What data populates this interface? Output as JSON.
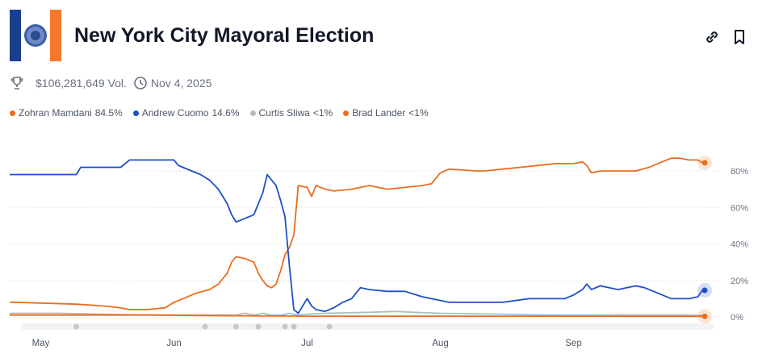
{
  "header": {
    "title": "New York City Mayoral Election",
    "link_icon": "link-icon",
    "bookmark_icon": "bookmark-icon",
    "logo_colors": {
      "left": "#1b3f8f",
      "right": "#f4782a"
    }
  },
  "meta": {
    "volume": "$106,281,649 Vol.",
    "date": "Nov 4, 2025",
    "volume_icon": "trophy-icon",
    "date_icon": "clock-icon"
  },
  "legend": [
    {
      "name": "Zohran Mamdani",
      "value": "84.5%",
      "color": "#ea6d1d"
    },
    {
      "name": "Andrew Cuomo",
      "value": "14.6%",
      "color": "#1e4fc9"
    },
    {
      "name": "Curtis Sliwa",
      "value": "<1%",
      "color": "#b3bac4"
    },
    {
      "name": "Brad Lander",
      "value": "<1%",
      "color": "#ea6d1d"
    }
  ],
  "chart_data": {
    "type": "line",
    "x_axis_labels": [
      "May",
      "Jun",
      "Jul",
      "Aug",
      "Sep"
    ],
    "x_axis_label_days": [
      6,
      36,
      66,
      96,
      126
    ],
    "y_tick_labels": [
      "0%",
      "20%",
      "40%",
      "60%",
      "80%"
    ],
    "y_tick_values": [
      0,
      20,
      40,
      60,
      80
    ],
    "ylim": [
      0,
      90
    ],
    "xlim_days": [
      -1,
      159
    ],
    "grid": true,
    "legend_placement": "top-left",
    "series": [
      {
        "name": "Zohran Mamdani",
        "color": "#ea6d1d",
        "points": [
          [
            -1,
            8
          ],
          [
            0,
            8
          ],
          [
            14,
            7
          ],
          [
            20,
            6
          ],
          [
            24,
            5
          ],
          [
            26,
            4
          ],
          [
            30,
            4
          ],
          [
            34,
            5
          ],
          [
            36,
            8
          ],
          [
            38,
            10
          ],
          [
            41,
            13
          ],
          [
            44,
            15
          ],
          [
            46,
            18
          ],
          [
            48,
            24
          ],
          [
            49,
            30
          ],
          [
            50,
            33
          ],
          [
            52,
            32
          ],
          [
            54,
            30
          ],
          [
            55,
            24
          ],
          [
            56,
            20
          ],
          [
            57,
            17
          ],
          [
            58,
            16
          ],
          [
            59,
            18
          ],
          [
            60,
            25
          ],
          [
            61,
            34
          ],
          [
            62,
            38
          ],
          [
            63,
            45
          ],
          [
            64,
            72
          ],
          [
            66,
            71
          ],
          [
            67,
            66
          ],
          [
            68,
            72
          ],
          [
            70,
            70
          ],
          [
            72,
            69
          ],
          [
            76,
            70
          ],
          [
            80,
            72
          ],
          [
            84,
            70
          ],
          [
            88,
            71
          ],
          [
            92,
            72
          ],
          [
            94,
            73
          ],
          [
            96,
            79
          ],
          [
            98,
            81
          ],
          [
            104,
            80
          ],
          [
            106,
            80
          ],
          [
            110,
            81
          ],
          [
            114,
            82
          ],
          [
            118,
            83
          ],
          [
            122,
            84
          ],
          [
            126,
            84
          ],
          [
            128,
            85
          ],
          [
            129,
            83
          ],
          [
            130,
            79
          ],
          [
            132,
            80
          ],
          [
            136,
            80
          ],
          [
            140,
            80
          ],
          [
            143,
            82
          ],
          [
            144,
            83
          ],
          [
            146,
            85
          ],
          [
            148,
            87
          ],
          [
            150,
            87
          ],
          [
            152,
            86
          ],
          [
            154,
            86
          ],
          [
            155,
            84.5
          ]
        ]
      },
      {
        "name": "Andrew Cuomo",
        "color": "#1e4fc9",
        "points": [
          [
            -1,
            78
          ],
          [
            14,
            78
          ],
          [
            15,
            82
          ],
          [
            18,
            82
          ],
          [
            24,
            82
          ],
          [
            26,
            86
          ],
          [
            30,
            86
          ],
          [
            36,
            86
          ],
          [
            37,
            83
          ],
          [
            38,
            82
          ],
          [
            40,
            80
          ],
          [
            42,
            78
          ],
          [
            44,
            75
          ],
          [
            46,
            70
          ],
          [
            48,
            62
          ],
          [
            49,
            56
          ],
          [
            50,
            52
          ],
          [
            52,
            54
          ],
          [
            54,
            56
          ],
          [
            55,
            62
          ],
          [
            56,
            68
          ],
          [
            57,
            78
          ],
          [
            58,
            75
          ],
          [
            59,
            72
          ],
          [
            60,
            64
          ],
          [
            61,
            55
          ],
          [
            62,
            28
          ],
          [
            63,
            4
          ],
          [
            64,
            2
          ],
          [
            65,
            6
          ],
          [
            66,
            10
          ],
          [
            67,
            6
          ],
          [
            68,
            4
          ],
          [
            70,
            3
          ],
          [
            72,
            5
          ],
          [
            74,
            8
          ],
          [
            76,
            10
          ],
          [
            78,
            16
          ],
          [
            80,
            15
          ],
          [
            84,
            14
          ],
          [
            88,
            14
          ],
          [
            92,
            11
          ],
          [
            94,
            10
          ],
          [
            96,
            9
          ],
          [
            98,
            8
          ],
          [
            104,
            8
          ],
          [
            110,
            8
          ],
          [
            116,
            10
          ],
          [
            120,
            10
          ],
          [
            124,
            10
          ],
          [
            126,
            12
          ],
          [
            128,
            15
          ],
          [
            129,
            18
          ],
          [
            130,
            15
          ],
          [
            132,
            17
          ],
          [
            134,
            16
          ],
          [
            136,
            15
          ],
          [
            138,
            16
          ],
          [
            140,
            17
          ],
          [
            142,
            16
          ],
          [
            144,
            14
          ],
          [
            146,
            12
          ],
          [
            148,
            10
          ],
          [
            150,
            10
          ],
          [
            152,
            10
          ],
          [
            154,
            11
          ],
          [
            155,
            14.6
          ]
        ]
      },
      {
        "name": "Curtis Sliwa",
        "color": "#b3bac4",
        "points": [
          [
            -1,
            2
          ],
          [
            10,
            2
          ],
          [
            20,
            1.5
          ],
          [
            30,
            1
          ],
          [
            40,
            1
          ],
          [
            50,
            1
          ],
          [
            52,
            2
          ],
          [
            54,
            1
          ],
          [
            56,
            2
          ],
          [
            58,
            1
          ],
          [
            60,
            1
          ],
          [
            62,
            2
          ],
          [
            64,
            1
          ],
          [
            66,
            1.5
          ],
          [
            70,
            2
          ],
          [
            80,
            2.5
          ],
          [
            86,
            3
          ],
          [
            90,
            2.5
          ],
          [
            96,
            2
          ],
          [
            110,
            1.5
          ],
          [
            120,
            1
          ],
          [
            130,
            1
          ],
          [
            140,
            1
          ],
          [
            150,
            1
          ],
          [
            155,
            0.8
          ]
        ]
      },
      {
        "name": "Brad Lander",
        "color": "#ea6d1d",
        "points": [
          [
            -1,
            1
          ],
          [
            10,
            1
          ],
          [
            20,
            1
          ],
          [
            30,
            1
          ],
          [
            40,
            0.8
          ],
          [
            50,
            0.6
          ],
          [
            60,
            0.5
          ],
          [
            63,
            0.5
          ],
          [
            64,
            0.4
          ],
          [
            80,
            0.4
          ],
          [
            100,
            0.4
          ],
          [
            120,
            0.4
          ],
          [
            140,
            0.3
          ],
          [
            155,
            0.3
          ]
        ]
      }
    ],
    "event_markers_days": [
      14,
      43,
      50,
      55,
      61,
      63,
      71
    ]
  }
}
